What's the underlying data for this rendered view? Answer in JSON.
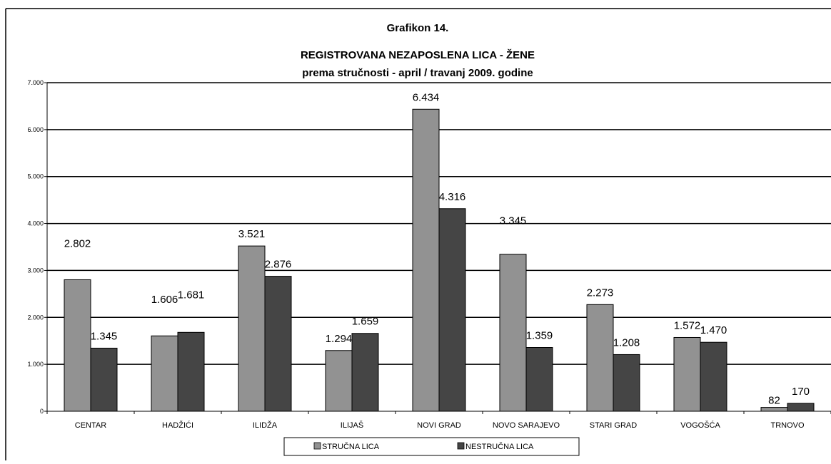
{
  "chart_data": {
    "type": "bar",
    "title": "Grafikon 14.",
    "subtitle": "REGISTROVANA NEZAPOSLENA LICA - ŽENE",
    "subtitle2": "prema stručnosti - april / travanj  2009. godine",
    "categories": [
      "CENTAR",
      "HADŽIĆI",
      "ILIDŽA",
      "ILIJAŠ",
      "NOVI GRAD",
      "NOVO SARAJEVO",
      "STARI GRAD",
      "VOGOŠĆA",
      "TRNOVO"
    ],
    "series": [
      {
        "name": "STRUČNA LICA",
        "color": "#929292",
        "values": [
          2802,
          1606,
          3521,
          1294,
          6434,
          3345,
          2273,
          1572,
          82
        ],
        "labels": [
          "2.802",
          "1.606",
          "3.521",
          "1.294",
          "6.434",
          "3.345",
          "2.273",
          "1.572",
          "82"
        ]
      },
      {
        "name": "NESTRUČNA LICA",
        "color": "#454545",
        "values": [
          1345,
          1681,
          2876,
          1659,
          4316,
          1359,
          1208,
          1470,
          170
        ],
        "labels": [
          "1.345",
          "1.681",
          "2.876",
          "1.659",
          "4.316",
          "1.359",
          "1.208",
          "1.470",
          "170"
        ]
      }
    ],
    "ylim": [
      0,
      7000
    ],
    "yticks": [
      0,
      1000,
      2000,
      3000,
      4000,
      5000,
      6000,
      7000
    ],
    "ytick_labels": [
      "0",
      "1.000",
      "2.000",
      "3.000",
      "4.000",
      "5.000",
      "6.000",
      "7.000"
    ],
    "grid": true,
    "legend_position": "bottom"
  }
}
